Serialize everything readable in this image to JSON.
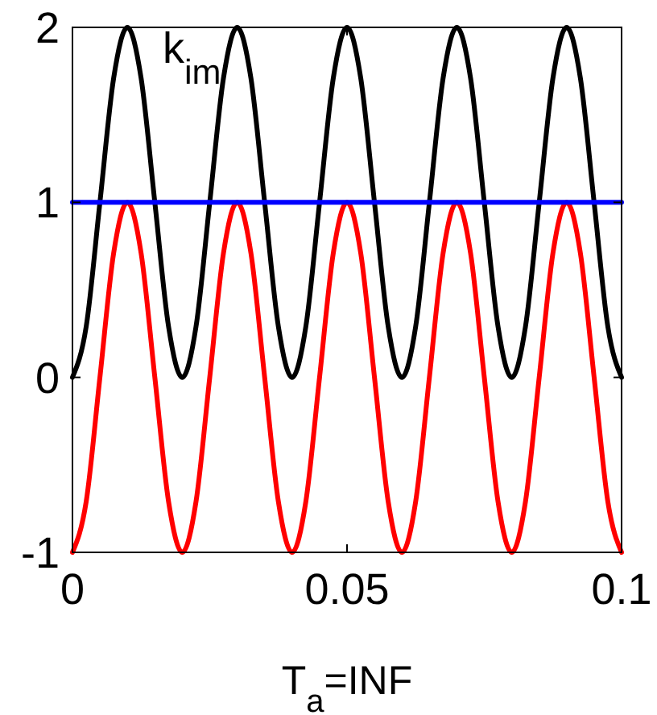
{
  "chart_data": {
    "type": "line",
    "xlabel": "T$_{a}$=INF",
    "x": [
      0,
      0.0025,
      0.005,
      0.0075,
      0.01,
      0.0125,
      0.015,
      0.0175,
      0.02,
      0.0225,
      0.025,
      0.0275,
      0.03,
      0.0325,
      0.035,
      0.0375,
      0.04,
      0.0425,
      0.045,
      0.0475,
      0.05,
      0.0525,
      0.055,
      0.0575,
      0.06,
      0.0625,
      0.065,
      0.0675,
      0.07,
      0.0725,
      0.075,
      0.0775,
      0.08,
      0.0825,
      0.085,
      0.0875,
      0.09,
      0.0925,
      0.095,
      0.0975,
      0.1
    ],
    "series": [
      {
        "color": "#000000",
        "values": [
          0,
          0.29,
          1,
          1.71,
          2,
          1.71,
          1,
          0.29,
          0,
          0.29,
          1,
          1.71,
          2,
          1.71,
          1,
          0.29,
          0,
          0.29,
          1,
          1.71,
          2,
          1.71,
          1,
          0.29,
          0,
          0.29,
          1,
          1.71,
          2,
          1.71,
          1,
          0.29,
          0,
          0.29,
          1,
          1.71,
          2,
          1.71,
          1,
          0.29,
          0
        ]
      },
      {
        "color": "#ff0000",
        "values": [
          -1,
          -0.71,
          0,
          0.71,
          1,
          0.71,
          0,
          -0.71,
          -1,
          -0.71,
          0,
          0.71,
          1,
          0.71,
          0,
          -0.71,
          -1,
          -0.71,
          0,
          0.71,
          1,
          0.71,
          0,
          -0.71,
          -1,
          -0.71,
          0,
          0.71,
          1,
          0.71,
          0,
          -0.71,
          -1,
          -0.71,
          0,
          0.71,
          1,
          0.71,
          0,
          -0.71,
          -1
        ]
      },
      {
        "color": "#0000ff",
        "x": [
          0,
          0.1
        ],
        "values": [
          1,
          1
        ]
      }
    ],
    "annotations": [
      "k$_{im}$"
    ],
    "xlim": [
      0,
      0.1
    ],
    "ylim": [
      -1,
      2
    ],
    "xticks": [
      0,
      0.05,
      0.1
    ],
    "yticks": [
      -1,
      0,
      1,
      2
    ],
    "grid": false,
    "marker": "none",
    "line_style": "solid"
  }
}
